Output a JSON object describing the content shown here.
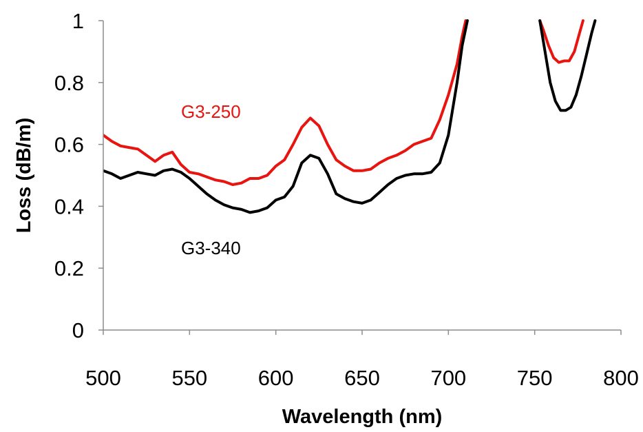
{
  "chart_data": {
    "type": "line",
    "title": "",
    "xlabel": "Wavelength (nm)",
    "ylabel": "Loss (dB/m)",
    "xlim": [
      500,
      800
    ],
    "ylim": [
      0,
      1
    ],
    "x_ticks": [
      "500",
      "550",
      "600",
      "650",
      "700",
      "750",
      "800"
    ],
    "y_ticks": [
      "0",
      "0.2",
      "0.4",
      "0.6",
      "0.8",
      "1"
    ],
    "grid": false,
    "legend": "none",
    "series": [
      {
        "name": "G3-250",
        "color": "#e8140f",
        "segments": [
          {
            "x": [
              500,
              505,
              510,
              515,
              520,
              525,
              530,
              535,
              540,
              545,
              550,
              555,
              560,
              565,
              570,
              575,
              580,
              585,
              590,
              595,
              600,
              605,
              610,
              615,
              620,
              625,
              630,
              635,
              640,
              645,
              650,
              655,
              660,
              665,
              670,
              675,
              680,
              685,
              690,
              695,
              700,
              705,
              708,
              710
            ],
            "y": [
              0.63,
              0.61,
              0.595,
              0.59,
              0.585,
              0.565,
              0.545,
              0.565,
              0.575,
              0.535,
              0.51,
              0.505,
              0.495,
              0.485,
              0.48,
              0.47,
              0.475,
              0.49,
              0.49,
              0.5,
              0.53,
              0.55,
              0.6,
              0.655,
              0.685,
              0.66,
              0.6,
              0.55,
              0.53,
              0.515,
              0.515,
              0.52,
              0.54,
              0.555,
              0.565,
              0.58,
              0.6,
              0.61,
              0.62,
              0.68,
              0.76,
              0.86,
              0.95,
              1.0
            ]
          },
          {
            "x": [
              753,
              755,
              758,
              761,
              764,
              767,
              770,
              773,
              776,
              778
            ],
            "y": [
              1.0,
              0.97,
              0.92,
              0.88,
              0.865,
              0.87,
              0.87,
              0.9,
              0.96,
              1.0
            ]
          }
        ]
      },
      {
        "name": "G3-340",
        "color": "#000000",
        "segments": [
          {
            "x": [
              500,
              505,
              510,
              515,
              520,
              525,
              530,
              535,
              540,
              545,
              550,
              555,
              560,
              565,
              570,
              575,
              580,
              585,
              590,
              595,
              600,
              605,
              610,
              615,
              620,
              625,
              630,
              635,
              640,
              645,
              650,
              655,
              660,
              665,
              670,
              675,
              680,
              685,
              690,
              695,
              700,
              705,
              708,
              711
            ],
            "y": [
              0.515,
              0.505,
              0.49,
              0.5,
              0.51,
              0.505,
              0.5,
              0.515,
              0.52,
              0.51,
              0.49,
              0.465,
              0.44,
              0.42,
              0.405,
              0.395,
              0.39,
              0.38,
              0.385,
              0.395,
              0.42,
              0.43,
              0.465,
              0.54,
              0.565,
              0.555,
              0.505,
              0.44,
              0.425,
              0.415,
              0.41,
              0.42,
              0.445,
              0.47,
              0.49,
              0.5,
              0.505,
              0.505,
              0.51,
              0.54,
              0.63,
              0.8,
              0.92,
              1.0
            ]
          },
          {
            "x": [
              753,
              756,
              759,
              762,
              765,
              768,
              771,
              774,
              777,
              780,
              783,
              785
            ],
            "y": [
              1.0,
              0.9,
              0.8,
              0.74,
              0.71,
              0.71,
              0.72,
              0.76,
              0.82,
              0.89,
              0.96,
              1.0
            ]
          }
        ]
      }
    ],
    "annotations": [
      {
        "text": "G3-250",
        "color": "#e8140f"
      },
      {
        "text": "G3-340",
        "color": "#000000"
      }
    ]
  }
}
